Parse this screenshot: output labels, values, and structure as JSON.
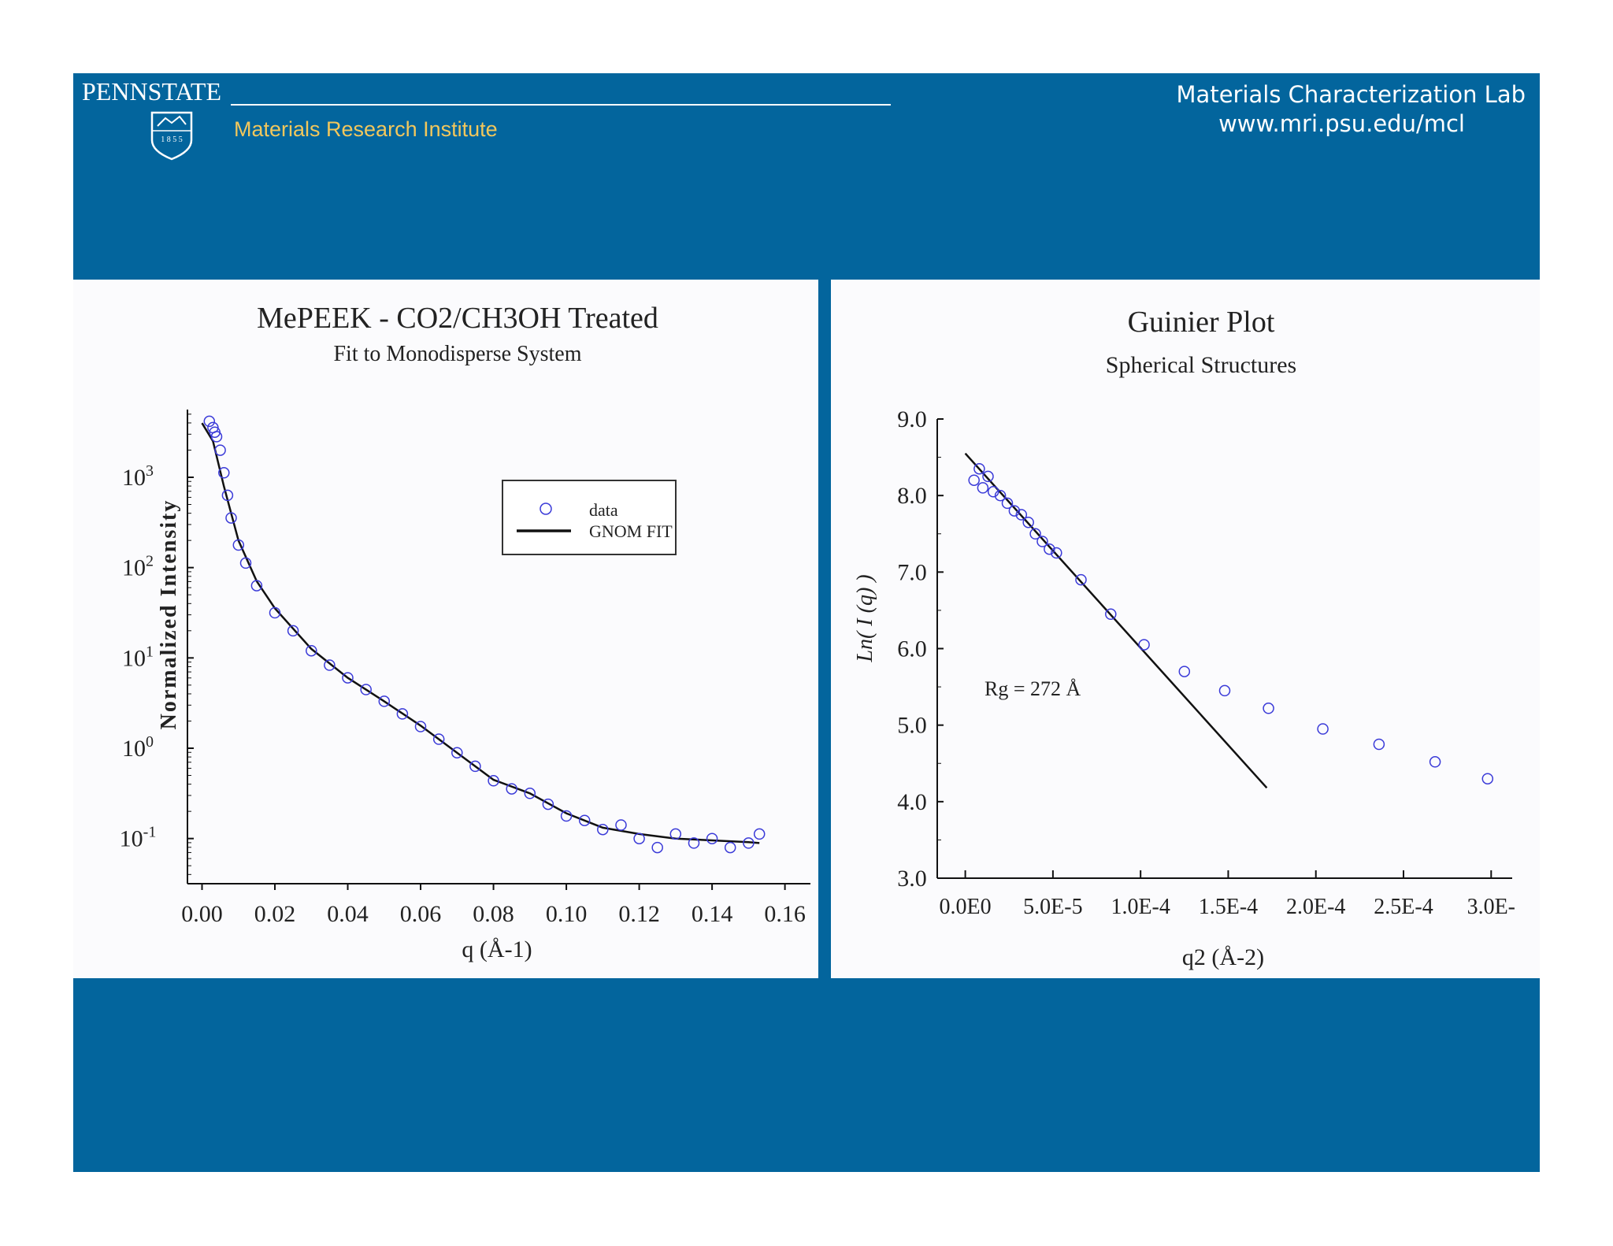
{
  "header": {
    "logo_text": "PENNSTATE",
    "shield_year": "1 8 5 5",
    "institute": "Materials Research Institute",
    "lab_name": "Materials Characterization Lab",
    "lab_url": "www.mri.psu.edu/mcl"
  },
  "colors": {
    "brand_blue": "#03659d",
    "institute_gold": "#f2c75c",
    "data_marker": "#3a3ad8",
    "fit_line": "#111111"
  },
  "chart_data": [
    {
      "type": "scatter",
      "title": "MePEEK - CO2/CH3OH Treated",
      "subtitle": "Fit to Monodisperse System",
      "xlabel": "q (Å-1)",
      "ylabel": "Normalized Intensity",
      "xlim": [
        -0.004,
        0.167
      ],
      "ylim_log10": [
        -1.5,
        3.75
      ],
      "yscale": "log",
      "xticks": [
        "0.00",
        "0.02",
        "0.04",
        "0.06",
        "0.08",
        "0.10",
        "0.12",
        "0.14",
        "0.16"
      ],
      "xtick_values": [
        0,
        0.02,
        0.04,
        0.06,
        0.08,
        0.1,
        0.12,
        0.14,
        0.16
      ],
      "yticks": [
        {
          "base": "10",
          "exp": "3",
          "log": 3
        },
        {
          "base": "10",
          "exp": "2",
          "log": 2
        },
        {
          "base": "10",
          "exp": "1",
          "log": 1
        },
        {
          "base": "10",
          "exp": "0",
          "log": 0
        },
        {
          "base": "10",
          "exp": "-1",
          "log": -1
        }
      ],
      "legend": {
        "position": "top-right",
        "entries": [
          {
            "label": "data",
            "marker": "circle"
          },
          {
            "label": "GNOM FIT",
            "marker": "line"
          }
        ]
      },
      "fit_curve": {
        "x": [
          0.0,
          0.003,
          0.006,
          0.01,
          0.015,
          0.02,
          0.03,
          0.04,
          0.05,
          0.06,
          0.07,
          0.08,
          0.09,
          0.1,
          0.11,
          0.12,
          0.13,
          0.14,
          0.15,
          0.153
        ],
        "log_y": [
          3.6,
          3.4,
          2.9,
          2.3,
          1.85,
          1.55,
          1.1,
          0.78,
          0.52,
          0.25,
          -0.05,
          -0.35,
          -0.5,
          -0.72,
          -0.88,
          -0.95,
          -1.0,
          -1.02,
          -1.04,
          -1.05
        ]
      },
      "data_points": {
        "x": [
          0.002,
          0.003,
          0.0035,
          0.004,
          0.005,
          0.006,
          0.007,
          0.008,
          0.01,
          0.012,
          0.015,
          0.02,
          0.025,
          0.03,
          0.035,
          0.04,
          0.045,
          0.05,
          0.055,
          0.06,
          0.065,
          0.07,
          0.075,
          0.08,
          0.085,
          0.09,
          0.095,
          0.1,
          0.105,
          0.11,
          0.115,
          0.12,
          0.125,
          0.13,
          0.135,
          0.14,
          0.145,
          0.15,
          0.153
        ],
        "log_y": [
          3.62,
          3.55,
          3.5,
          3.45,
          3.3,
          3.05,
          2.8,
          2.55,
          2.25,
          2.05,
          1.8,
          1.5,
          1.3,
          1.08,
          0.92,
          0.78,
          0.65,
          0.52,
          0.38,
          0.24,
          0.1,
          -0.05,
          -0.2,
          -0.36,
          -0.45,
          -0.5,
          -0.62,
          -0.75,
          -0.8,
          -0.9,
          -0.85,
          -1.0,
          -1.1,
          -0.95,
          -1.05,
          -1.0,
          -1.1,
          -1.05,
          -0.95
        ]
      }
    },
    {
      "type": "scatter",
      "title": "Guinier Plot",
      "subtitle": "Spherical Structures",
      "xlabel": "q2 (Å-2)",
      "ylabel": "Ln( I (q) )",
      "xlim": [
        -1.6e-05,
        0.000312
      ],
      "ylim": [
        3.0,
        9.0
      ],
      "xticks": [
        "0.0E0",
        "5.0E-5",
        "1.0E-4",
        "1.5E-4",
        "2.0E-4",
        "2.5E-4",
        "3.0E-"
      ],
      "xtick_values": [
        0,
        5e-05,
        0.0001,
        0.00015,
        0.0002,
        0.00025,
        0.0003
      ],
      "yticks": [
        "3.0",
        "4.0",
        "5.0",
        "6.0",
        "7.0",
        "8.0",
        "9.0"
      ],
      "ytick_values": [
        3,
        4,
        5,
        6,
        7,
        8,
        9
      ],
      "annotation": "Rg = 272 Å",
      "fit_line": {
        "x": [
          0.0,
          0.000172
        ],
        "y": [
          8.55,
          4.18
        ]
      },
      "data_points": {
        "x": [
          5e-06,
          8e-06,
          1e-05,
          1.3e-05,
          1.6e-05,
          2e-05,
          2.4e-05,
          2.8e-05,
          3.2e-05,
          3.6e-05,
          4e-05,
          4.4e-05,
          4.8e-05,
          5.2e-05,
          6.6e-05,
          8.3e-05,
          0.000102,
          0.000125,
          0.000148,
          0.000173,
          0.000204,
          0.000236,
          0.000268,
          0.000298
        ],
        "y": [
          8.2,
          8.35,
          8.1,
          8.25,
          8.05,
          8.0,
          7.9,
          7.8,
          7.75,
          7.65,
          7.5,
          7.4,
          7.3,
          7.25,
          6.9,
          6.45,
          6.05,
          5.7,
          5.45,
          5.22,
          4.95,
          4.75,
          4.52,
          4.3
        ]
      }
    }
  ]
}
